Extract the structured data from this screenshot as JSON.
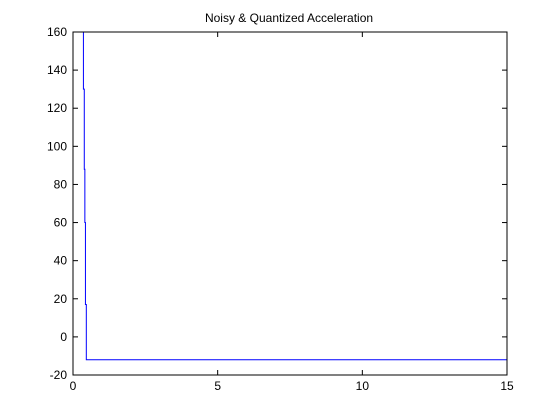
{
  "chart_data": {
    "type": "line",
    "title": "Noisy & Quantized Acceleration",
    "xlabel": "",
    "ylabel": "",
    "xlim": [
      0,
      15
    ],
    "ylim": [
      -20,
      160
    ],
    "xticks": [
      "0",
      "5",
      "10",
      "15"
    ],
    "yticks": [
      "-20",
      "0",
      "20",
      "40",
      "60",
      "80",
      "100",
      "120",
      "140",
      "160"
    ],
    "grid": false,
    "legend": "none",
    "series": [
      {
        "color": "#0000ff",
        "x": [
          0,
          0,
          0.02,
          0.02,
          0.36,
          0.36,
          0.39,
          0.39,
          0.41,
          0.41,
          0.43,
          0.43,
          0.46,
          0.46,
          0.52,
          0.52,
          15
        ],
        "y": [
          104,
          160,
          160,
          160,
          160,
          130,
          130,
          88,
          88,
          60,
          60,
          17,
          17,
          -12,
          -12,
          -12,
          -12
        ]
      }
    ]
  }
}
